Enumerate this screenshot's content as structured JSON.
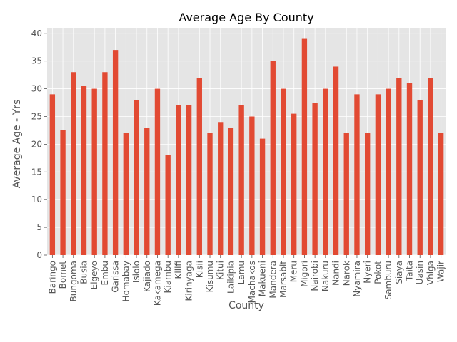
{
  "chart_data": {
    "type": "bar",
    "title": "Average Age By County",
    "xlabel": "County",
    "ylabel": "Average Age - Yrs",
    "ylim": [
      0,
      41
    ],
    "yticks": [
      0,
      5,
      10,
      15,
      20,
      25,
      30,
      35,
      40
    ],
    "grid": true,
    "legend": "none",
    "bar_color": "#E24A33",
    "background_color": "#E5E5E5",
    "grid_color": "#FFFFFF",
    "categories": [
      "Baringo",
      "Bomet",
      "Bungoma",
      "Busia",
      "Elgeyo",
      "Embu",
      "Garissa",
      "Homabay",
      "Isiolo",
      "Kajiado",
      "Kakamega",
      "Kiambu",
      "Kilifi",
      "Kirinyaga",
      "Kisii",
      "Kisumu",
      "Kitui",
      "Laikipia",
      "Lamu",
      "Machakos",
      "Makueni",
      "Mandera",
      "Marsabit",
      "Meru",
      "Migori",
      "Nairobi",
      "Nakuru",
      "Nandi",
      "Narok",
      "Nyamira",
      "Nyeri",
      "Pokot",
      "Samburu",
      "Siaya",
      "Taita",
      "Uasin",
      "Vhiga",
      "Wajir"
    ],
    "values": [
      29,
      22.5,
      33,
      30.5,
      30,
      33,
      37,
      22,
      28,
      23,
      30,
      18,
      27,
      27,
      32,
      22,
      24,
      23,
      27,
      25,
      21,
      35,
      30,
      25.5,
      39,
      27.5,
      30,
      34,
      22,
      29,
      22,
      29,
      30,
      32,
      31,
      28,
      32,
      22
    ]
  }
}
